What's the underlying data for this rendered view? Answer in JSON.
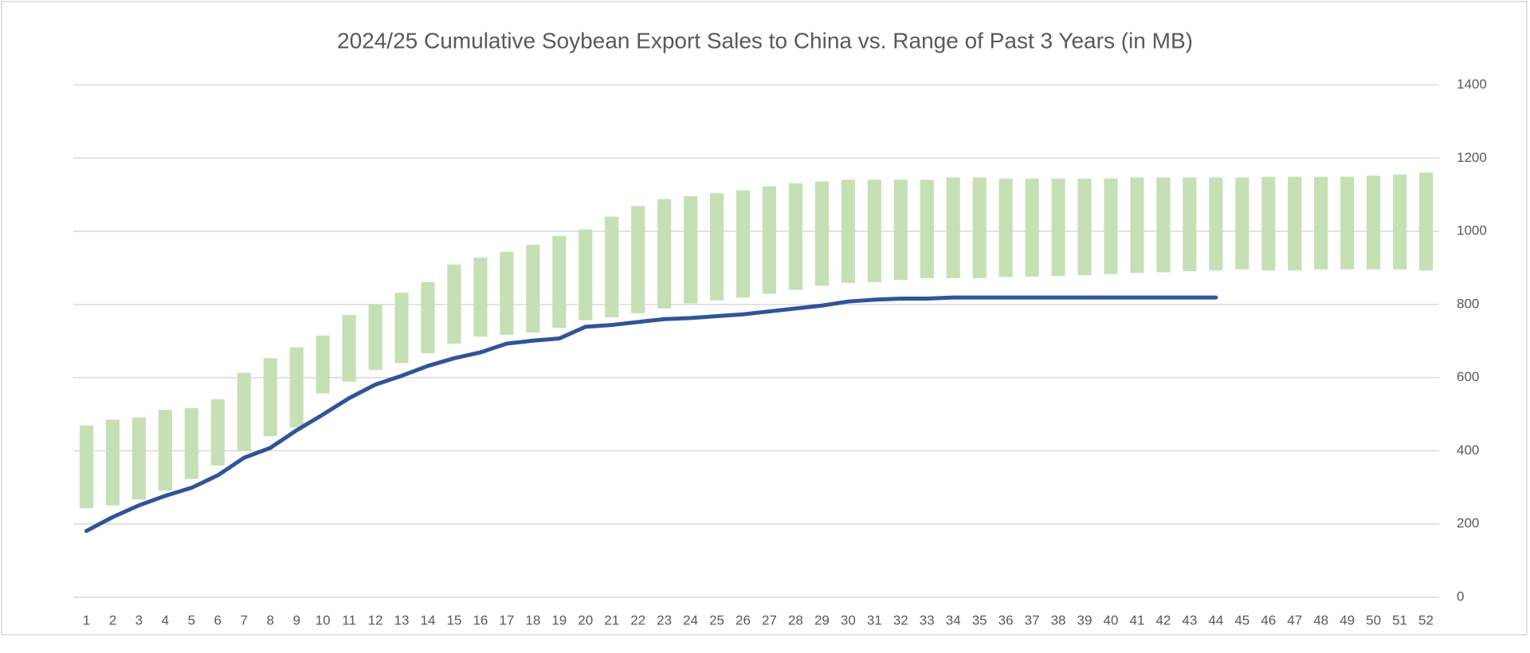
{
  "chart_data": {
    "type": "range_bar",
    "title": "2024/25 Cumulative Soybean Export Sales to China vs. Range of Past 3 Years (in MB)",
    "categories": [
      1,
      2,
      3,
      4,
      5,
      6,
      7,
      8,
      9,
      10,
      11,
      12,
      13,
      14,
      15,
      16,
      17,
      18,
      19,
      20,
      21,
      22,
      23,
      24,
      25,
      26,
      27,
      28,
      29,
      30,
      31,
      32,
      33,
      34,
      35,
      36,
      37,
      38,
      39,
      40,
      41,
      42,
      43,
      44,
      45,
      46,
      47,
      48,
      49,
      50,
      51,
      52
    ],
    "range": {
      "color": "#c5e0b4",
      "low": [
        243,
        251,
        267,
        291,
        323,
        360,
        400,
        440,
        464,
        557,
        589,
        621,
        640,
        667,
        693,
        712,
        717,
        723,
        736,
        757,
        765,
        776,
        789,
        803,
        811,
        819,
        829,
        840,
        851,
        859,
        861,
        867,
        872,
        872,
        872,
        875,
        876,
        878,
        880,
        883,
        886,
        888,
        891,
        893,
        896,
        893,
        893,
        896,
        896,
        896,
        896,
        893
      ],
      "high": [
        469,
        485,
        491,
        512,
        517,
        541,
        613,
        653,
        683,
        715,
        771,
        800,
        832,
        861,
        909,
        928,
        944,
        963,
        987,
        1005,
        1040,
        1069,
        1088,
        1096,
        1104,
        1112,
        1123,
        1131,
        1136,
        1141,
        1141,
        1141,
        1141,
        1147,
        1147,
        1144,
        1144,
        1144,
        1144,
        1144,
        1147,
        1147,
        1147,
        1147,
        1147,
        1149,
        1149,
        1149,
        1149,
        1152,
        1155,
        1160
      ]
    },
    "line": {
      "color": "#2f5597",
      "values": [
        181,
        219,
        251,
        277,
        299,
        333,
        381,
        408,
        456,
        499,
        544,
        581,
        605,
        632,
        653,
        669,
        693,
        701,
        707,
        739,
        744,
        752,
        760,
        763,
        768,
        773,
        781,
        789,
        797,
        808,
        813,
        816,
        816,
        819,
        819,
        819,
        819,
        819,
        819,
        819,
        819,
        819,
        819,
        819,
        null,
        null,
        null,
        null,
        null,
        null,
        null,
        null
      ]
    },
    "ylim": [
      0,
      1400
    ],
    "yticks": [
      0,
      200,
      400,
      600,
      800,
      1000,
      1200,
      1400
    ],
    "grid": true,
    "y_axis_side": "right"
  }
}
